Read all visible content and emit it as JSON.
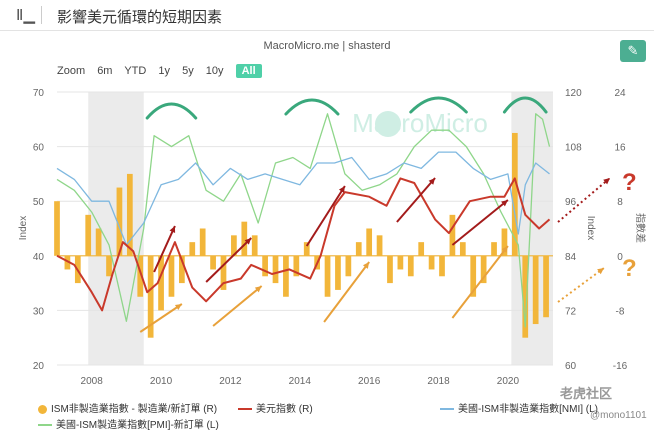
{
  "header": {
    "icon": "bar-chart-icon",
    "title": "影響美元循環的短期因素"
  },
  "source": "MacroMicro.me | shasterd",
  "zoom": {
    "label": "Zoom",
    "options": [
      "6m",
      "YTD",
      "1y",
      "5y",
      "10y",
      "All"
    ],
    "active": "All"
  },
  "watermark": {
    "logo": "MacroMicro",
    "community": "老虎社区",
    "user": "@mono1101"
  },
  "annotations": {
    "question_top": "?",
    "question_bottom": "?"
  },
  "colors": {
    "pmi": "#8fd68a",
    "nmi": "#7fb8e0",
    "dxy": "#c9392b",
    "bars": "#f2b63a",
    "arc": "#3aa87c",
    "arrow_red": "#a31b1b",
    "arrow_orange": "#e8a13a",
    "shade": "#ebebeb"
  },
  "chart_data": {
    "type": "line",
    "title": "影響美元循環的短期因素",
    "x": {
      "min": 2007,
      "max": 2021.3,
      "ticks": [
        2008,
        2010,
        2012,
        2014,
        2016,
        2018,
        2020
      ]
    },
    "y_left": {
      "label": "Index",
      "min": 20,
      "max": 70,
      "ticks": [
        20,
        30,
        40,
        50,
        60,
        70
      ]
    },
    "y_right1": {
      "label": "Index",
      "min": 60,
      "max": 120,
      "ticks": [
        60,
        72,
        84,
        96,
        108,
        120
      ]
    },
    "y_right2": {
      "label": "指數差",
      "min": -16,
      "max": 24,
      "ticks": [
        -16,
        -8,
        0,
        8,
        16,
        24
      ]
    },
    "recessions": [
      [
        2007.9,
        2009.5
      ],
      [
        2020.1,
        2021.3
      ]
    ],
    "series": [
      {
        "name": "美國-ISM製造業指數[PMI]-新訂單 (L)",
        "axis": "left",
        "x": [
          2007.0,
          2007.5,
          2008.0,
          2008.5,
          2009.0,
          2009.5,
          2009.8,
          2010.3,
          2010.8,
          2011.3,
          2011.8,
          2012.3,
          2012.8,
          2013.3,
          2013.8,
          2014.3,
          2014.8,
          2015.3,
          2015.8,
          2016.3,
          2016.8,
          2017.3,
          2017.8,
          2018.3,
          2018.8,
          2019.3,
          2019.8,
          2020.3,
          2020.5,
          2020.8,
          2021.0,
          2021.2
        ],
        "values": [
          54,
          52,
          48,
          42,
          28,
          45,
          62,
          60,
          62,
          52,
          50,
          55,
          46,
          57,
          58,
          56,
          66,
          55,
          52,
          53,
          55,
          60,
          63,
          63,
          60,
          55,
          48,
          42,
          27,
          66,
          65,
          60
        ]
      },
      {
        "name": "美國-ISM非製造業指數[NMI] (L)",
        "axis": "left",
        "x": [
          2007.0,
          2007.5,
          2008.0,
          2008.5,
          2009.0,
          2009.5,
          2010.0,
          2010.5,
          2011.0,
          2011.5,
          2012.0,
          2012.5,
          2013.0,
          2013.5,
          2014.0,
          2014.5,
          2015.0,
          2015.5,
          2016.0,
          2016.5,
          2017.0,
          2017.5,
          2018.0,
          2018.5,
          2019.0,
          2019.5,
          2020.0,
          2020.3,
          2020.5,
          2020.8,
          2021.2
        ],
        "values": [
          56,
          54,
          50,
          50,
          42,
          46,
          53,
          54,
          57,
          53,
          56,
          54,
          55,
          54,
          53,
          57,
          57,
          58,
          54,
          55,
          57,
          56,
          59,
          59,
          56,
          54,
          55,
          44,
          53,
          57,
          55
        ]
      },
      {
        "name": "美元指數 (R)",
        "axis": "right1",
        "x": [
          2007.0,
          2007.5,
          2008.0,
          2008.3,
          2008.6,
          2008.9,
          2009.2,
          2009.6,
          2009.9,
          2010.4,
          2010.9,
          2011.3,
          2011.8,
          2012.3,
          2012.6,
          2013.2,
          2013.7,
          2014.3,
          2014.6,
          2015.0,
          2015.3,
          2016.0,
          2016.5,
          2016.9,
          2017.3,
          2017.9,
          2018.3,
          2018.9,
          2019.5,
          2019.9,
          2020.2,
          2020.5,
          2020.9,
          2021.2
        ],
        "values": [
          84,
          82,
          76,
          72,
          80,
          87,
          85,
          76,
          78,
          87,
          77,
          74,
          78,
          79,
          82,
          80,
          81,
          79,
          84,
          95,
          98,
          97,
          95,
          101,
          100,
          92,
          89,
          96,
          97,
          97,
          101,
          93,
          90,
          92
        ]
      }
    ],
    "bars": {
      "name": "ISM非製造業指數 - 製造業/新訂單 (R)",
      "axis": "right2",
      "x": [
        2007.0,
        2007.3,
        2007.6,
        2007.9,
        2008.2,
        2008.5,
        2008.8,
        2009.1,
        2009.4,
        2009.7,
        2010.0,
        2010.3,
        2010.6,
        2010.9,
        2011.2,
        2011.5,
        2011.8,
        2012.1,
        2012.4,
        2012.7,
        2013.0,
        2013.3,
        2013.6,
        2013.9,
        2014.2,
        2014.5,
        2014.8,
        2015.1,
        2015.4,
        2015.7,
        2016.0,
        2016.3,
        2016.6,
        2016.9,
        2017.2,
        2017.5,
        2017.8,
        2018.1,
        2018.4,
        2018.7,
        2019.0,
        2019.3,
        2019.6,
        2019.9,
        2020.2,
        2020.5,
        2020.8,
        2021.1
      ],
      "values": [
        8,
        -2,
        -4,
        6,
        4,
        -3,
        10,
        12,
        -6,
        -12,
        -8,
        -6,
        -4,
        2,
        4,
        -2,
        -5,
        3,
        5,
        3,
        -3,
        -4,
        -6,
        -3,
        2,
        -2,
        -6,
        -5,
        -3,
        2,
        4,
        3,
        -4,
        -2,
        -3,
        2,
        -2,
        -3,
        6,
        2,
        -6,
        -4,
        2,
        4,
        18,
        -12,
        -10,
        -9
      ]
    }
  },
  "legend": [
    "ISM非製造業指數 - 製造業/新訂單 (R)",
    "美元指數 (R)",
    "美國-ISM非製造業指數[NMI] (L)",
    "美國-ISM製造業指數[PMI]-新訂單 (L)"
  ]
}
